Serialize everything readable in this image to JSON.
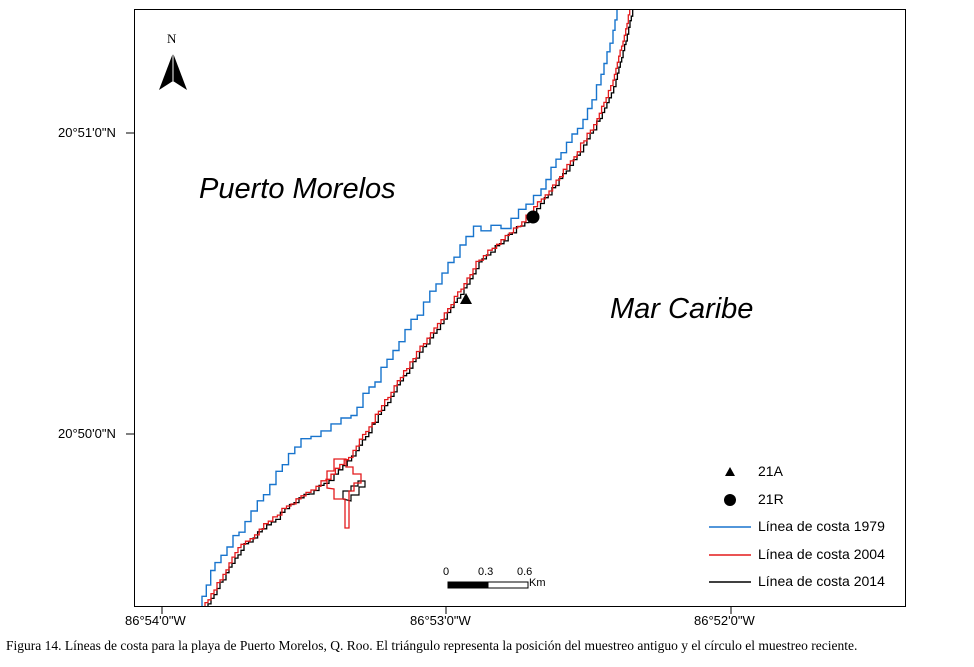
{
  "map": {
    "lat_labels": [
      "20°51'0\"N",
      "20°50'0\"N"
    ],
    "lon_labels": [
      "86°54'0\"W",
      "86°53'0\"W",
      "86°52'0\"W"
    ],
    "land_label": "Puerto Morelos",
    "sea_label": "Mar Caribe",
    "north_letter": "N"
  },
  "legend": {
    "items": [
      {
        "label": "21A",
        "symbol": "triangle"
      },
      {
        "label": "21R",
        "symbol": "circle"
      },
      {
        "label": "Línea de costa 1979",
        "color": "#1874cd"
      },
      {
        "label": "Línea de costa 2004",
        "color": "#e31a1c"
      },
      {
        "label": "Línea de costa 2014",
        "color": "#000000"
      }
    ]
  },
  "scale_bar": {
    "labels": [
      "0",
      "0.3",
      "0.6"
    ],
    "unit": "Km"
  },
  "caption": "Figura 14. Líneas de costa para la playa de Puerto Morelos, Q. Roo. El triángulo representa la posición del muestreo antiguo y el círculo el muestreo reciente."
}
